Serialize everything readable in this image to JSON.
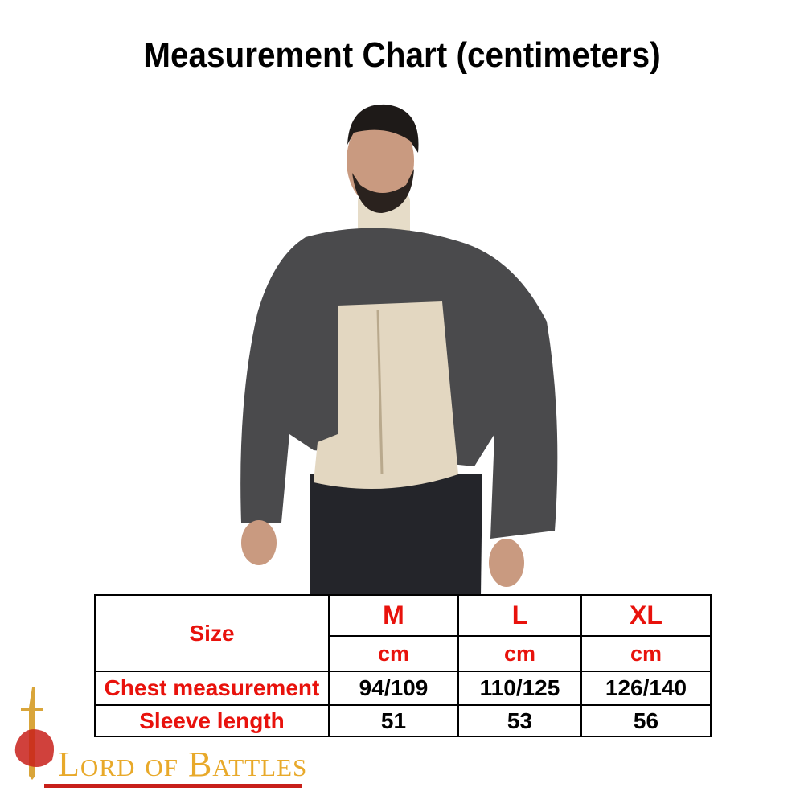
{
  "title": "Measurement Chart (centimeters)",
  "table": {
    "header_label": "Size",
    "sizes": [
      "M",
      "L",
      "XL"
    ],
    "unit": "cm",
    "rows": [
      {
        "label": "Chest measurement",
        "values": [
          "94/109",
          "110/125",
          "126/140"
        ]
      },
      {
        "label": "Sleeve length",
        "values": [
          "51",
          "53",
          "56"
        ]
      }
    ]
  },
  "logo": {
    "text": "Lord of Battles"
  },
  "colors": {
    "label_red": "#e8120c",
    "logo_gold": "#e8a92a",
    "logo_red": "#c8201a"
  }
}
